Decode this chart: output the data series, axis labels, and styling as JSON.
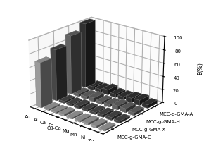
{
  "series": [
    "MCC-g-GMA-G",
    "MCC-g-GMA-X",
    "MCC-g-GMA-H",
    "MCC-g-GMA-A"
  ],
  "categories": [
    "Au",
    "Al",
    "Ca",
    "Fe",
    "Cu-Ca",
    "Mg",
    "Mn",
    "Ni",
    "Zn"
  ],
  "values": {
    "MCC-g-GMA-G": [
      68,
      2,
      2,
      3,
      2,
      2,
      3,
      3,
      2
    ],
    "MCC-g-GMA-X": [
      78,
      3,
      3,
      4,
      3,
      3,
      4,
      4,
      3
    ],
    "MCC-g-GMA-H": [
      90,
      4,
      4,
      6,
      4,
      4,
      6,
      6,
      4
    ],
    "MCC-g-GMA-A": [
      100,
      5,
      5,
      8,
      5,
      5,
      7,
      8,
      5
    ]
  },
  "colors": {
    "MCC-g-GMA-G": "#b0b0b0",
    "MCC-g-GMA-X": "#505050",
    "MCC-g-GMA-H": "#707070",
    "MCC-g-GMA-A": "#383838"
  },
  "ylabel": "E(%)",
  "ylim": [
    0,
    100
  ],
  "yticks": [
    0,
    20,
    40,
    60,
    80,
    100
  ],
  "elev": 22,
  "azim": -50,
  "bar_width": 0.7,
  "bar_depth": 0.7,
  "tick_fontsize": 5,
  "label_fontsize": 5.5
}
